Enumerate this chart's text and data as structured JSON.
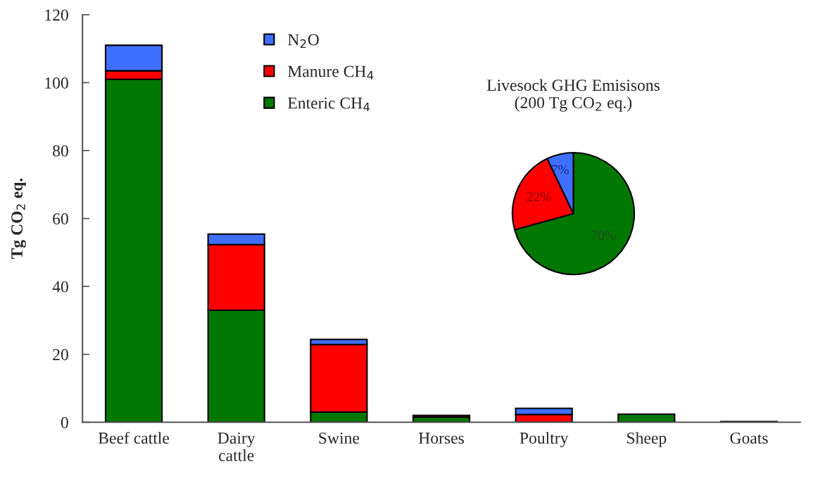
{
  "chart_data": [
    {
      "type": "bar",
      "stacked": true,
      "ylabel": "Tg CO$_{2}$ eq.",
      "categories": [
        "Beef cattle",
        "Dairy\ncattle",
        "Swine",
        "Horses",
        "Poultry",
        "Sheep",
        "Goats"
      ],
      "ylim": [
        0,
        120
      ],
      "yticks": [
        0,
        20,
        40,
        60,
        80,
        100,
        120
      ],
      "legend": "top",
      "grid": false,
      "series": [
        {
          "name": "Enteric CH$_{4}$",
          "color": "#007800",
          "values": [
            101,
            33,
            3,
            1.5,
            null,
            2.4,
            0.2
          ]
        },
        {
          "name": "Manure CH$_{4}$",
          "color": "#ff0000",
          "values": [
            2.5,
            19.3,
            19.9,
            0.5,
            2.3,
            null,
            null
          ]
        },
        {
          "name": "N$_{2}$O",
          "color": "#3f6fff",
          "values": [
            7.5,
            3.1,
            1.5,
            null,
            1.8,
            null,
            null
          ]
        }
      ]
    },
    {
      "type": "pie",
      "title": "Livesock GHG Emisisons\n(200 Tg CO$_{2}$ eq.)",
      "categories": [
        null,
        null,
        null
      ],
      "values": [
        70,
        22,
        7
      ],
      "colors": [
        "#007800",
        "#ff0000",
        "#3f6fff"
      ],
      "data_labels": true,
      "value_labels": [
        "70%",
        "22%",
        "7%"
      ]
    }
  ]
}
